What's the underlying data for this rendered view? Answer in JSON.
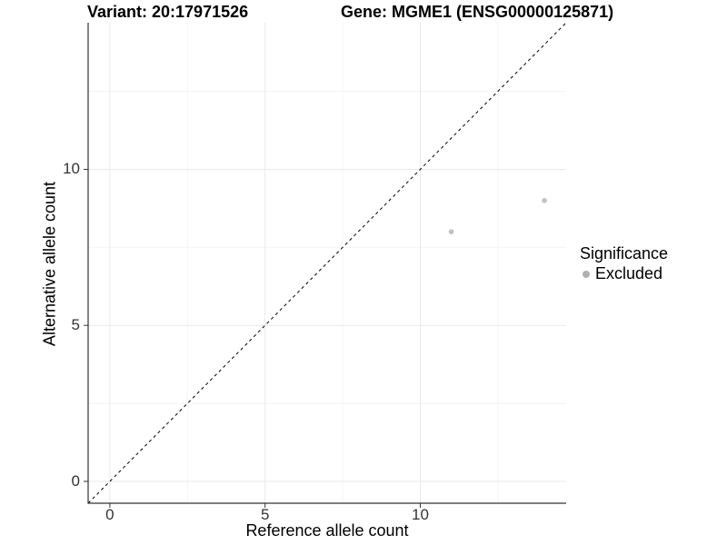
{
  "colors": {
    "background": "#ffffff",
    "axis_line": "#333333",
    "tick_mark": "#333333",
    "tick_label": "#333333",
    "grid_major": "#e9e9e9",
    "grid_minor": "#f4f4f4",
    "point": "#c1c1c1",
    "legend_key": "#b0b0b0",
    "reference_line": "#000000"
  },
  "chart_data": {
    "type": "scatter",
    "titles": {
      "left": "Variant: 20:17971526",
      "right": "Gene: MGME1 (ENSG00000125871)"
    },
    "xlabel": "Reference allele count",
    "ylabel": "Alternative allele count",
    "xlim": [
      -0.7,
      14.7
    ],
    "ylim": [
      -0.7,
      14.7
    ],
    "x_ticks": [
      0,
      5,
      10
    ],
    "y_ticks": [
      0,
      5,
      10
    ],
    "x_minor_ticks": [
      2.5,
      7.5,
      12.5
    ],
    "y_minor_ticks": [
      2.5,
      7.5,
      12.5
    ],
    "grid": "major+minor",
    "reference_line": {
      "kind": "identity",
      "style": "dashed",
      "x1": -0.7,
      "y1": -0.7,
      "x2": 14.7,
      "y2": 14.7
    },
    "series": [
      {
        "name": "Excluded",
        "marker": "circle",
        "points": [
          {
            "x": 11,
            "y": 8
          },
          {
            "x": 14,
            "y": 9
          }
        ]
      }
    ],
    "legend": {
      "title": "Significance",
      "position": "right",
      "items": [
        {
          "label": "Excluded",
          "marker": "circle"
        }
      ]
    }
  }
}
